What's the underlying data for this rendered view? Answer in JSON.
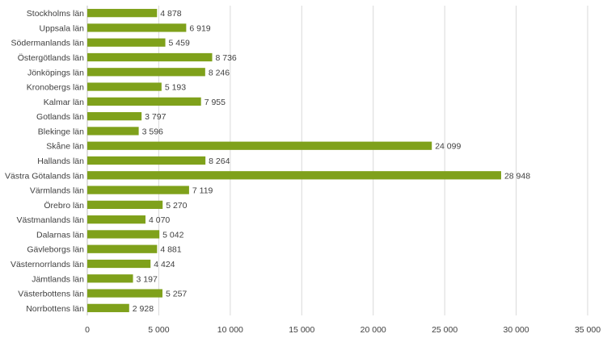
{
  "chart_data": {
    "type": "bar",
    "orientation": "horizontal",
    "categories": [
      "Stockholms län",
      "Uppsala län",
      "Södermanlands län",
      "Östergötlands län",
      "Jönköpings län",
      "Kronobergs län",
      "Kalmar län",
      "Gotlands län",
      "Blekinge län",
      "Skåne län",
      "Hallands län",
      "Västra Götalands län",
      "Värmlands län",
      "Örebro län",
      "Västmanlands län",
      "Dalarnas län",
      "Gävleborgs län",
      "Västernorrlands län",
      "Jämtlands län",
      "Västerbottens län",
      "Norrbottens län"
    ],
    "values": [
      4878,
      6919,
      5459,
      8736,
      8246,
      5193,
      7955,
      3797,
      3596,
      24099,
      8264,
      28948,
      7119,
      5270,
      4070,
      5042,
      4881,
      4424,
      3197,
      5257,
      2928
    ],
    "value_labels": [
      "4 878",
      "6 919",
      "5 459",
      "8 736",
      "8 246",
      "5 193",
      "7 955",
      "3 797",
      "3 596",
      "24 099",
      "8 264",
      "28 948",
      "7 119",
      "5 270",
      "4 070",
      "5 042",
      "4 881",
      "4 424",
      "3 197",
      "5 257",
      "2 928"
    ],
    "xlim": [
      0,
      35000
    ],
    "xticks": [
      0,
      5000,
      10000,
      15000,
      20000,
      25000,
      30000,
      35000
    ],
    "xtick_labels": [
      "0",
      "5 000",
      "10 000",
      "15 000",
      "20 000",
      "25 000",
      "30 000",
      "35 000"
    ],
    "title": "",
    "xlabel": "",
    "ylabel": "",
    "grid": "vertical",
    "legend": "none",
    "colors": {
      "bar": "#7FA11B",
      "grid": "#D9D9D9",
      "axis": "#BFBFBF",
      "text": "#404040"
    }
  }
}
